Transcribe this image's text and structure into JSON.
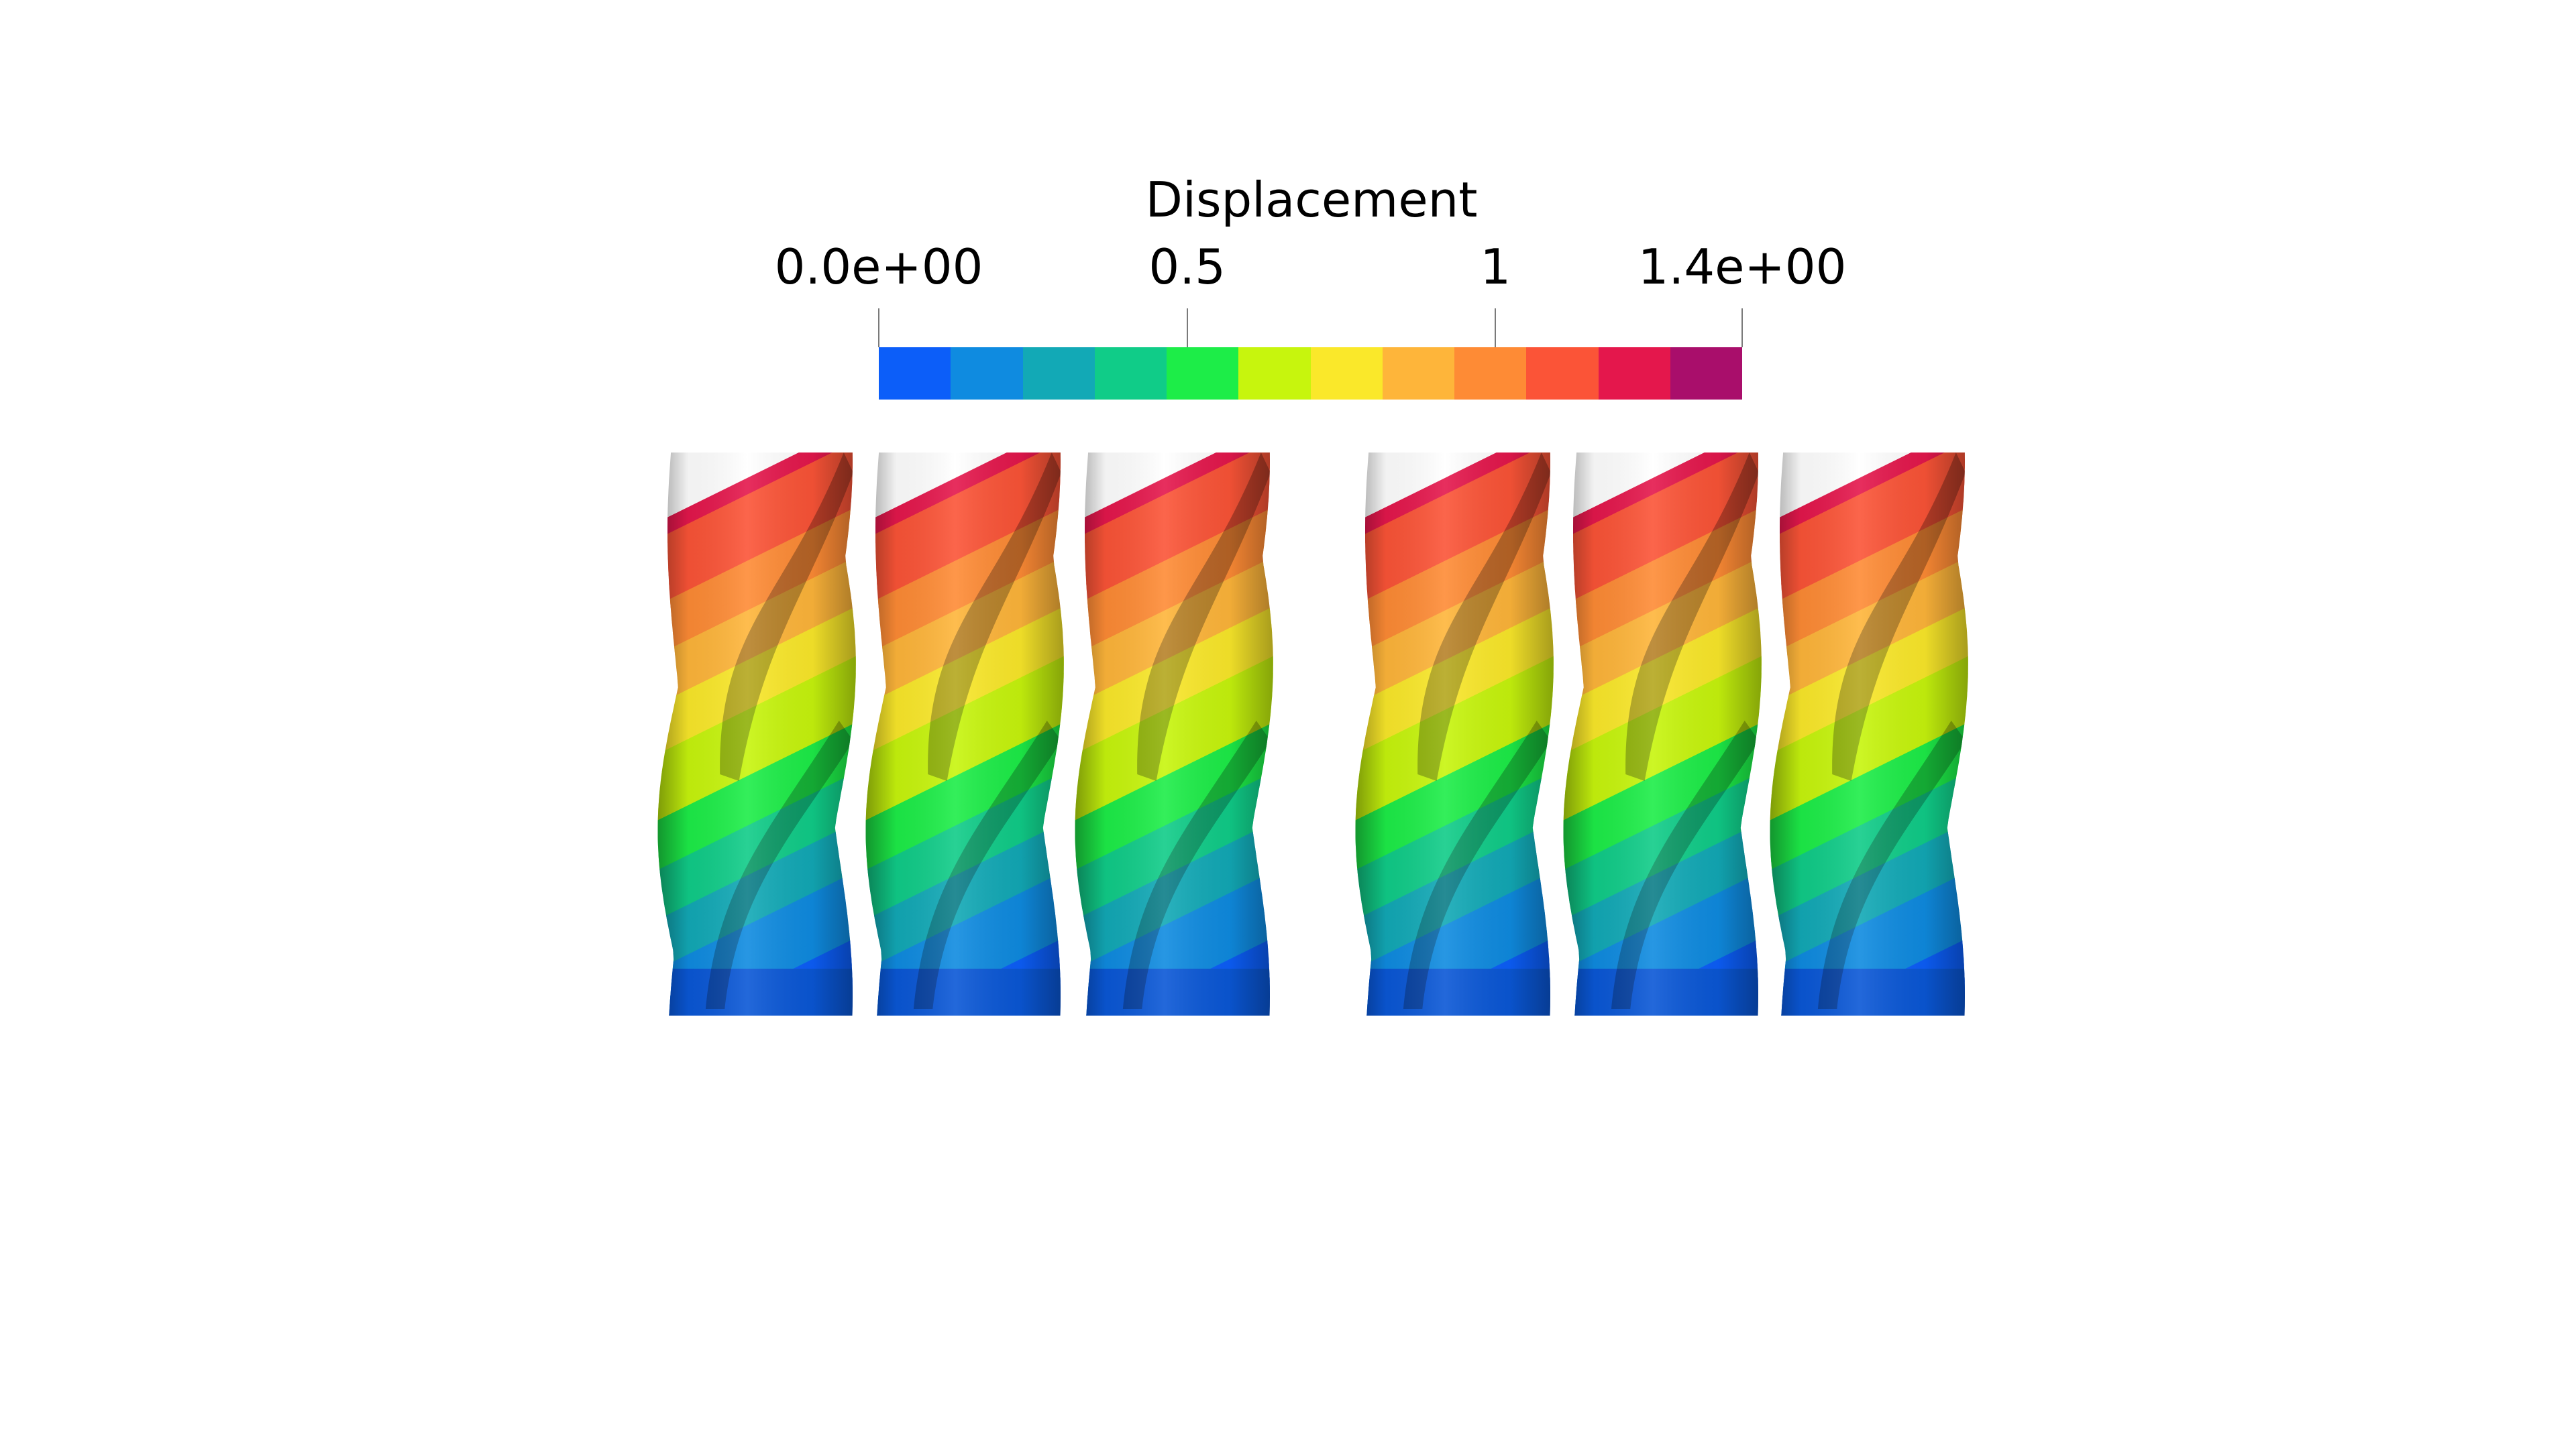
{
  "legend": {
    "title": "Displacement",
    "ticks": [
      {
        "value": 0.0,
        "label": "0.0e+00"
      },
      {
        "value": 0.5,
        "label": "0.5"
      },
      {
        "value": 1.0,
        "label": "1"
      },
      {
        "value": 1.4,
        "label": "1.4e+00"
      }
    ],
    "range": [
      0.0,
      1.4
    ],
    "bands": 12,
    "colors": [
      "#0c5ef9",
      "#0f8be0",
      "#12a9b6",
      "#10cc88",
      "#1ded48",
      "#c7f50d",
      "#fae82a",
      "#feb53a",
      "#fe8b35",
      "#fb5437",
      "#e4174c",
      "#a90e6b"
    ]
  },
  "scene": {
    "object_count": 6,
    "groups": 2,
    "objects_per_group": 3,
    "object_type": "twisted-column",
    "colormap": "rainbow-banded"
  }
}
